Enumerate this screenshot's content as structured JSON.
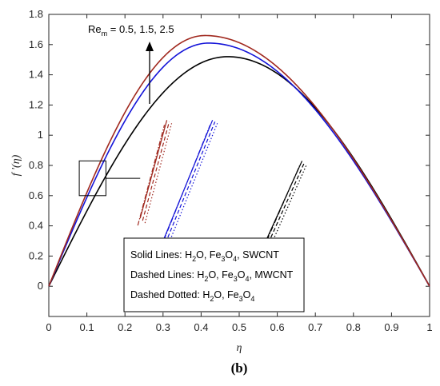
{
  "chart_data": {
    "type": "line",
    "caption": "(b)",
    "xlabel": "η",
    "ylabel": "f '(η)",
    "xlim": [
      0,
      1
    ],
    "ylim": [
      -0.2,
      1.8
    ],
    "xticks": [
      "0",
      "0.1",
      "0.2",
      "0.3",
      "0.4",
      "0.5",
      "0.6",
      "0.7",
      "0.8",
      "0.9",
      "1"
    ],
    "yticks": [
      "0",
      "0.2",
      "0.4",
      "0.6",
      "0.8",
      "1",
      "1.2",
      "1.4",
      "1.6",
      "1.8"
    ],
    "grid": false,
    "annotation": {
      "text_main": "Re",
      "text_sub": "m",
      "text_rest": " = 0.5, 1.5, 2.5",
      "arrow": "up"
    },
    "legend": {
      "placement": "bottom-center",
      "entries": [
        {
          "prefix": "Solid Lines: H",
          "sub1": "2",
          "mid1": "O, Fe",
          "sub2": "3",
          "mid2": "O",
          "sub3": "4",
          "suffix": ", SWCNT"
        },
        {
          "prefix": "Dashed Lines: H",
          "sub1": "2",
          "mid1": "O, Fe",
          "sub2": "3",
          "mid2": "O",
          "sub3": "4",
          "suffix": ", MWCNT"
        },
        {
          "prefix": "Dashed Dotted: H",
          "sub1": "2",
          "mid1": "O, Fe",
          "sub2": "3",
          "mid2": "O",
          "sub3": "4",
          "suffix": ""
        }
      ]
    },
    "series": [
      {
        "color": "#000000",
        "peak_x": 0.47,
        "peak_y": 1.52,
        "style": "solid"
      },
      {
        "color": "#1414d8",
        "peak_x": 0.42,
        "peak_y": 1.61,
        "style": "solid"
      },
      {
        "color": "#a0281e",
        "peak_x": 0.41,
        "peak_y": 1.66,
        "style": "solid"
      }
    ],
    "inset": {
      "zoom_box_x": [
        0.08,
        0.15
      ],
      "zoom_box_y": [
        0.6,
        0.83
      ],
      "groups": [
        {
          "color": "#a0281e",
          "x_start": 0.24,
          "x_end": 0.31,
          "y_start": 0.45,
          "y_end": 1.1
        },
        {
          "color": "#1414d8",
          "x_start": 0.3,
          "x_end": 0.43,
          "y_start": 0.3,
          "y_end": 1.1
        },
        {
          "color": "#000000",
          "x_start": 0.57,
          "x_end": 0.665,
          "y_start": 0.3,
          "y_end": 0.83
        }
      ]
    }
  }
}
